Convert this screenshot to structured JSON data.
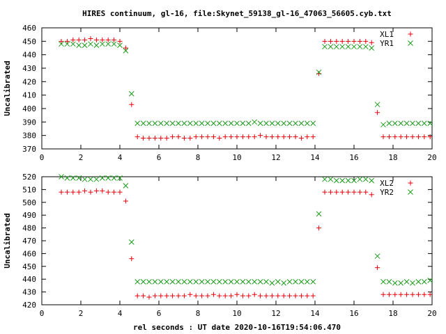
{
  "title": "HIRES continuum, gl-16, file:Skynet_59138_gl-16_47063_56605.cyb.txt",
  "xlabel": "rel seconds : UT date 2020-10-16T19:54:06.470",
  "colors": {
    "series_plus": "#e8000b",
    "series_x": "#1a9b1a",
    "axis": "#000000"
  },
  "chart_data": [
    {
      "type": "scatter",
      "ylabel": "Uncalibrated",
      "xlim": [
        0,
        20
      ],
      "ylim": [
        370,
        460
      ],
      "xticks": [
        0,
        2,
        4,
        6,
        8,
        10,
        12,
        14,
        16,
        18,
        20
      ],
      "yticks": [
        370,
        380,
        390,
        400,
        410,
        420,
        430,
        440,
        450,
        460
      ],
      "grid": false,
      "legend_position": "top-right",
      "series": [
        {
          "name": "XL1",
          "marker": "plus",
          "x": [
            1.0,
            1.3,
            1.6,
            1.9,
            2.2,
            2.5,
            2.8,
            3.1,
            3.4,
            3.7,
            4.0,
            4.3,
            4.6,
            4.9,
            5.2,
            5.5,
            5.8,
            6.1,
            6.4,
            6.7,
            7.0,
            7.3,
            7.6,
            7.9,
            8.2,
            8.5,
            8.8,
            9.1,
            9.4,
            9.7,
            10.0,
            10.3,
            10.6,
            10.9,
            11.2,
            11.5,
            11.8,
            12.1,
            12.4,
            12.7,
            13.0,
            13.3,
            13.6,
            13.9,
            14.2,
            14.5,
            14.8,
            15.1,
            15.4,
            15.7,
            16.0,
            16.3,
            16.6,
            16.9,
            17.2,
            17.5,
            17.8,
            18.1,
            18.4,
            18.7,
            19.0,
            19.3,
            19.6,
            19.9
          ],
          "y": [
            450,
            450,
            451,
            451,
            451,
            452,
            451,
            451,
            451,
            451,
            450,
            445,
            403,
            379,
            378,
            378,
            378,
            378,
            378,
            379,
            379,
            378,
            378,
            379,
            379,
            379,
            379,
            378,
            379,
            379,
            379,
            379,
            379,
            379,
            380,
            379,
            379,
            379,
            379,
            379,
            379,
            378,
            379,
            379,
            426,
            450,
            450,
            450,
            450,
            450,
            450,
            450,
            450,
            449,
            397,
            379,
            379,
            379,
            379,
            379,
            379,
            379,
            379,
            379
          ]
        },
        {
          "name": "YR1",
          "marker": "cross",
          "x": [
            1.0,
            1.3,
            1.6,
            1.9,
            2.2,
            2.5,
            2.8,
            3.1,
            3.4,
            3.7,
            4.0,
            4.3,
            4.6,
            4.9,
            5.2,
            5.5,
            5.8,
            6.1,
            6.4,
            6.7,
            7.0,
            7.3,
            7.6,
            7.9,
            8.2,
            8.5,
            8.8,
            9.1,
            9.4,
            9.7,
            10.0,
            10.3,
            10.6,
            10.9,
            11.2,
            11.5,
            11.8,
            12.1,
            12.4,
            12.7,
            13.0,
            13.3,
            13.6,
            13.9,
            14.2,
            14.5,
            14.8,
            15.1,
            15.4,
            15.7,
            16.0,
            16.3,
            16.6,
            16.9,
            17.2,
            17.5,
            17.8,
            18.1,
            18.4,
            18.7,
            19.0,
            19.3,
            19.6,
            19.9
          ],
          "y": [
            448,
            448,
            448,
            447,
            447,
            448,
            447,
            448,
            448,
            448,
            447,
            443,
            411,
            389,
            389,
            389,
            389,
            389,
            389,
            389,
            389,
            389,
            389,
            389,
            389,
            389,
            389,
            389,
            389,
            389,
            389,
            389,
            389,
            390,
            389,
            389,
            389,
            389,
            389,
            389,
            389,
            389,
            389,
            389,
            427,
            446,
            446,
            446,
            446,
            446,
            446,
            446,
            446,
            445,
            403,
            388,
            389,
            389,
            389,
            389,
            389,
            389,
            389,
            389
          ]
        }
      ]
    },
    {
      "type": "scatter",
      "ylabel": "Uncalibrated",
      "xlim": [
        0,
        20
      ],
      "ylim": [
        420,
        520
      ],
      "xticks": [
        0,
        2,
        4,
        6,
        8,
        10,
        12,
        14,
        16,
        18,
        20
      ],
      "yticks": [
        420,
        430,
        440,
        450,
        460,
        470,
        480,
        490,
        500,
        510,
        520
      ],
      "grid": false,
      "legend_position": "top-right",
      "series": [
        {
          "name": "XL2",
          "marker": "plus",
          "x": [
            1.0,
            1.3,
            1.6,
            1.9,
            2.2,
            2.5,
            2.8,
            3.1,
            3.4,
            3.7,
            4.0,
            4.3,
            4.6,
            4.9,
            5.2,
            5.5,
            5.8,
            6.1,
            6.4,
            6.7,
            7.0,
            7.3,
            7.6,
            7.9,
            8.2,
            8.5,
            8.8,
            9.1,
            9.4,
            9.7,
            10.0,
            10.3,
            10.6,
            10.9,
            11.2,
            11.5,
            11.8,
            12.1,
            12.4,
            12.7,
            13.0,
            13.3,
            13.6,
            13.9,
            14.2,
            14.5,
            14.8,
            15.1,
            15.4,
            15.7,
            16.0,
            16.3,
            16.6,
            16.9,
            17.2,
            17.5,
            17.8,
            18.1,
            18.4,
            18.7,
            19.0,
            19.3,
            19.6,
            19.9
          ],
          "y": [
            508,
            508,
            508,
            508,
            509,
            508,
            509,
            509,
            508,
            508,
            508,
            501,
            456,
            427,
            427,
            426,
            427,
            427,
            427,
            427,
            427,
            427,
            428,
            427,
            427,
            427,
            428,
            427,
            427,
            427,
            428,
            427,
            427,
            428,
            427,
            427,
            427,
            427,
            427,
            427,
            427,
            427,
            427,
            427,
            480,
            508,
            508,
            508,
            508,
            508,
            508,
            508,
            508,
            506,
            449,
            428,
            428,
            428,
            428,
            428,
            428,
            428,
            428,
            428
          ]
        },
        {
          "name": "YR2",
          "marker": "cross",
          "x": [
            1.0,
            1.3,
            1.6,
            1.9,
            2.2,
            2.5,
            2.8,
            3.1,
            3.4,
            3.7,
            4.0,
            4.3,
            4.6,
            4.9,
            5.2,
            5.5,
            5.8,
            6.1,
            6.4,
            6.7,
            7.0,
            7.3,
            7.6,
            7.9,
            8.2,
            8.5,
            8.8,
            9.1,
            9.4,
            9.7,
            10.0,
            10.3,
            10.6,
            10.9,
            11.2,
            11.5,
            11.8,
            12.1,
            12.4,
            12.7,
            13.0,
            13.3,
            13.6,
            13.9,
            14.2,
            14.5,
            14.8,
            15.1,
            15.4,
            15.7,
            16.0,
            16.3,
            16.6,
            16.9,
            17.2,
            17.5,
            17.8,
            18.1,
            18.4,
            18.7,
            19.0,
            19.3,
            19.6,
            19.9
          ],
          "y": [
            520,
            519,
            519,
            519,
            518,
            518,
            518,
            519,
            519,
            519,
            519,
            513,
            469,
            438,
            438,
            438,
            438,
            438,
            438,
            438,
            438,
            438,
            438,
            438,
            438,
            438,
            438,
            438,
            438,
            438,
            438,
            438,
            438,
            438,
            438,
            438,
            437,
            438,
            437,
            438,
            438,
            438,
            438,
            438,
            491,
            518,
            518,
            517,
            517,
            517,
            517,
            518,
            518,
            517,
            458,
            438,
            438,
            437,
            437,
            438,
            437,
            438,
            438,
            439
          ]
        }
      ]
    }
  ]
}
